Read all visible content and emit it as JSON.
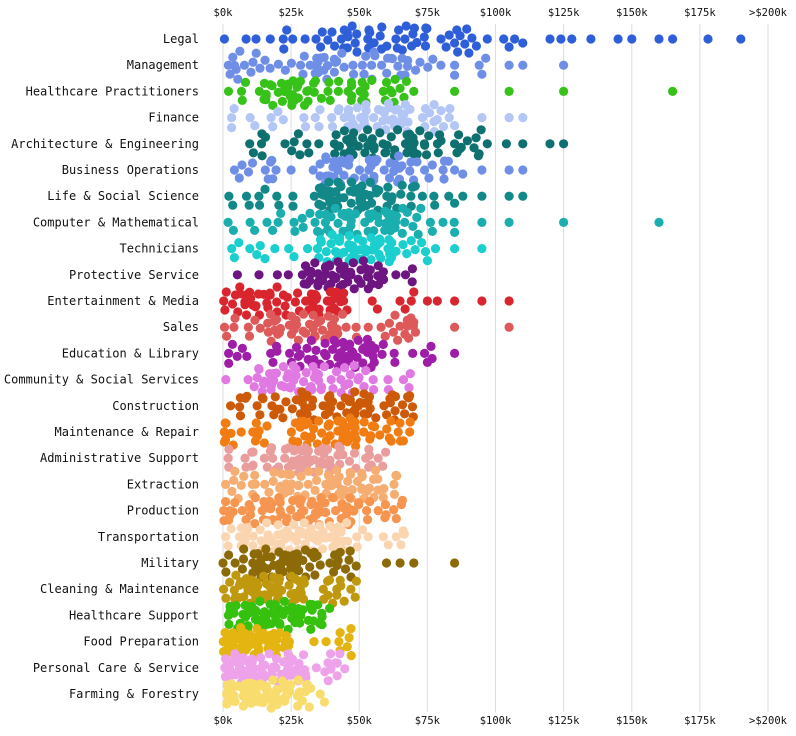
{
  "chart_data": {
    "type": "scatter",
    "subtype": "beeswarm",
    "title": "",
    "xlabel": "",
    "ylabel": "",
    "xlim": [
      0,
      200000
    ],
    "x_ticks": [
      0,
      25000,
      50000,
      75000,
      100000,
      125000,
      150000,
      175000,
      200000
    ],
    "x_tick_labels": [
      "$0k",
      "$25k",
      "$50k",
      "$75k",
      "$100k",
      "$125k",
      "$150k",
      "$175k",
      ">$200k"
    ],
    "grid": "vertical",
    "categories": [
      {
        "name": "Legal",
        "color": "#2f5fd8",
        "min": 0,
        "p25": 30000,
        "median": 50000,
        "p75": 72000,
        "max": 190000,
        "count": 55,
        "outliers": [
          80000,
          83000,
          85000,
          87000,
          93000,
          97000,
          103000,
          105000,
          107000,
          110000,
          120000,
          124000,
          128000,
          135000,
          145000,
          150000,
          160000,
          165000,
          178000,
          190000
        ]
      },
      {
        "name": "Management",
        "color": "#6f8fe6",
        "min": 0,
        "p25": 20000,
        "median": 45000,
        "p75": 68000,
        "max": 125000,
        "count": 65,
        "outliers": [
          85000,
          85000,
          95000,
          105000,
          110000,
          125000
        ]
      },
      {
        "name": "Healthcare Practitioners",
        "color": "#37c21a",
        "min": 0,
        "p25": 15000,
        "median": 30000,
        "p75": 50000,
        "max": 165000,
        "count": 65,
        "outliers": [
          60000,
          65000,
          70000,
          85000,
          105000,
          125000,
          165000
        ]
      },
      {
        "name": "Finance",
        "color": "#b3c6f5",
        "min": 0,
        "p25": 35000,
        "median": 52000,
        "p75": 68000,
        "max": 110000,
        "count": 70,
        "outliers": [
          80000,
          85000,
          95000,
          105000,
          110000
        ]
      },
      {
        "name": "Architecture & Engineering",
        "color": "#0f7070",
        "min": 5000,
        "p25": 40000,
        "median": 55000,
        "p75": 75000,
        "max": 125000,
        "count": 80,
        "outliers": [
          80000,
          85000,
          87000,
          94000,
          97000,
          104000,
          110000,
          120000,
          125000
        ]
      },
      {
        "name": "Business Operations",
        "color": "#6f8fe6",
        "min": 0,
        "p25": 35000,
        "median": 50000,
        "p75": 65000,
        "max": 110000,
        "count": 70,
        "outliers": [
          85000,
          88000,
          95000,
          105000,
          110000
        ]
      },
      {
        "name": "Life & Social Science",
        "color": "#138888",
        "min": 0,
        "p25": 35000,
        "median": 50000,
        "p75": 65000,
        "max": 110000,
        "count": 75,
        "outliers": [
          85000,
          88000,
          95000,
          105000,
          110000
        ]
      },
      {
        "name": "Computer & Mathematical",
        "color": "#1aaeae",
        "min": 0,
        "p25": 35000,
        "median": 50000,
        "p75": 68000,
        "max": 160000,
        "count": 75,
        "outliers": [
          85000,
          95000,
          105000,
          125000,
          160000
        ]
      },
      {
        "name": "Technicians",
        "color": "#1ccfcf",
        "min": 0,
        "p25": 35000,
        "median": 48000,
        "p75": 62000,
        "max": 95000,
        "count": 70,
        "outliers": [
          75000,
          85000,
          95000
        ]
      },
      {
        "name": "Protective Service",
        "color": "#6d1580",
        "min": 0,
        "p25": 30000,
        "median": 43000,
        "p75": 55000,
        "max": 70000,
        "count": 60,
        "outliers": []
      },
      {
        "name": "Entertainment & Media",
        "color": "#d9252d",
        "min": 0,
        "p25": 15000,
        "median": 35000,
        "p75": 55000,
        "max": 105000,
        "count": 70,
        "outliers": [
          75000,
          85000,
          95000,
          105000
        ]
      },
      {
        "name": "Sales",
        "color": "#de5a5a",
        "min": 0,
        "p25": 15000,
        "median": 30000,
        "p75": 50000,
        "max": 105000,
        "count": 70,
        "outliers": [
          65000,
          70000,
          85000,
          105000
        ]
      },
      {
        "name": "Education & Library",
        "color": "#9e1ea8",
        "min": 0,
        "p25": 25000,
        "median": 42000,
        "p75": 58000,
        "max": 85000,
        "count": 70,
        "outliers": [
          75000,
          85000
        ]
      },
      {
        "name": "Community & Social Services",
        "color": "#e07ae2",
        "min": 0,
        "p25": 20000,
        "median": 35000,
        "p75": 50000,
        "max": 70000,
        "count": 65,
        "outliers": []
      },
      {
        "name": "Construction",
        "color": "#cc5a08",
        "min": 0,
        "p25": 25000,
        "median": 40000,
        "p75": 58000,
        "max": 70000,
        "count": 75,
        "outliers": []
      },
      {
        "name": "Maintenance & Repair",
        "color": "#f07c12",
        "min": 0,
        "p25": 25000,
        "median": 40000,
        "p75": 55000,
        "max": 70000,
        "count": 75,
        "outliers": []
      },
      {
        "name": "Administrative Support",
        "color": "#ea9d9d",
        "min": 0,
        "p25": 15000,
        "median": 28000,
        "p75": 42000,
        "max": 60000,
        "count": 75,
        "outliers": []
      },
      {
        "name": "Extraction",
        "color": "#f6ad72",
        "min": 0,
        "p25": 20000,
        "median": 35000,
        "p75": 50000,
        "max": 65000,
        "count": 80,
        "outliers": []
      },
      {
        "name": "Production",
        "color": "#f59550",
        "min": 0,
        "p25": 15000,
        "median": 30000,
        "p75": 48000,
        "max": 70000,
        "count": 85,
        "outliers": []
      },
      {
        "name": "Transportation",
        "color": "#fbd5b0",
        "min": 0,
        "p25": 12000,
        "median": 28000,
        "p75": 45000,
        "max": 70000,
        "count": 80,
        "outliers": []
      },
      {
        "name": "Military",
        "color": "#8c6a08",
        "min": 0,
        "p25": 10000,
        "median": 22000,
        "p75": 35000,
        "max": 85000,
        "count": 75,
        "outliers": [
          60000,
          65000,
          70000,
          85000
        ]
      },
      {
        "name": "Cleaning & Maintenance",
        "color": "#bf980e",
        "min": 0,
        "p25": 8000,
        "median": 18000,
        "p75": 30000,
        "max": 50000,
        "count": 75,
        "outliers": []
      },
      {
        "name": "Healthcare Support",
        "color": "#35c10e",
        "min": 0,
        "p25": 8000,
        "median": 17000,
        "p75": 28000,
        "max": 40000,
        "count": 75,
        "outliers": []
      },
      {
        "name": "Food Preparation",
        "color": "#e4b410",
        "min": 0,
        "p25": 6000,
        "median": 14000,
        "p75": 25000,
        "max": 50000,
        "count": 75,
        "outliers": []
      },
      {
        "name": "Personal Care & Service",
        "color": "#eda2ea",
        "min": 0,
        "p25": 5000,
        "median": 15000,
        "p75": 28000,
        "max": 45000,
        "count": 85,
        "outliers": []
      },
      {
        "name": "Farming & Forestry",
        "color": "#f9dc6e",
        "min": 0,
        "p25": 4000,
        "median": 12000,
        "p75": 25000,
        "max": 40000,
        "count": 90,
        "outliers": []
      }
    ]
  }
}
